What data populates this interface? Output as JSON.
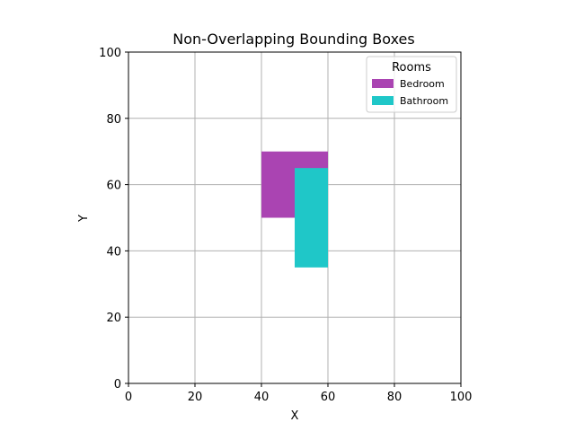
{
  "chart_data": {
    "type": "rectangles",
    "title": "Non-Overlapping Bounding Boxes",
    "xlabel": "X",
    "ylabel": "Y",
    "xlim": [
      0,
      100
    ],
    "ylim": [
      0,
      100
    ],
    "xticks": [
      "0",
      "20",
      "40",
      "60",
      "80",
      "100"
    ],
    "yticks": [
      "0",
      "20",
      "40",
      "60",
      "80",
      "100"
    ],
    "grid": true,
    "legend": {
      "title": "Rooms",
      "placement": "top-right"
    },
    "series": [
      {
        "name": "Bedroom",
        "color": "#aa44b2",
        "x0": 40,
        "y0": 50,
        "x1": 60,
        "y1": 70
      },
      {
        "name": "Bathroom",
        "color": "#1fc7c8",
        "x0": 50,
        "y0": 35,
        "x1": 60,
        "y1": 65
      }
    ]
  }
}
